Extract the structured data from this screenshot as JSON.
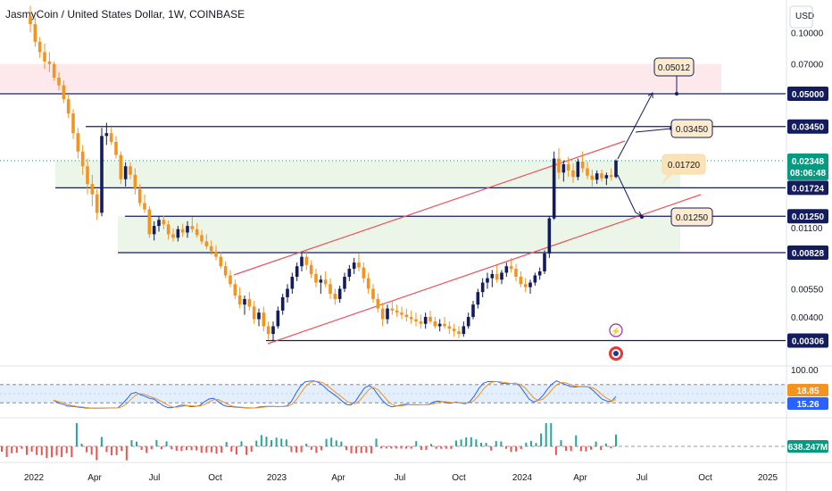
{
  "header": {
    "title": "JasmyCoin / United States Dollar, 1W, COINBASE",
    "currency": "USD"
  },
  "colors": {
    "up": "#131c5c",
    "down": "#f39320",
    "accent_line": "#131c5c",
    "channel": "#f0505a",
    "current_price": "#089981",
    "osc_k": "#2962ff",
    "osc_d": "#f39320"
  },
  "chart_data": {
    "type": "candlestick",
    "price_axis": {
      "scale": "log",
      "ticks": [
        "0.10000",
        "0.07000",
        "0.05000",
        "0.03450",
        "0.02348",
        "0.01724",
        "0.01250",
        "0.01100",
        "0.00828",
        "0.00550",
        "0.00400",
        "0.00306"
      ]
    },
    "x_ticks": [
      "2022",
      "Apr",
      "Jul",
      "Oct",
      "2023",
      "Apr",
      "Jul",
      "Oct",
      "2024",
      "Apr",
      "Jul",
      "Oct",
      "2025"
    ],
    "horizontal_levels": [
      {
        "value": "0.05000"
      },
      {
        "value": "0.03450"
      },
      {
        "value": "0.01724"
      },
      {
        "value": "0.01250"
      },
      {
        "value": "0.00828"
      },
      {
        "value": "0.00306"
      }
    ],
    "current_price": {
      "value": "0.02348",
      "countdown": "08:06:48"
    },
    "target_labels": [
      "0.05012",
      "0.03450",
      "0.01720",
      "0.01250"
    ],
    "oscillator": {
      "axis_label": "100.00",
      "k_value": "18.85",
      "d_value": "15.26",
      "upper_band": 80,
      "lower_band": 20
    },
    "volume": {
      "last_value": "638.247M"
    },
    "candles_sampled_weekly": [
      [
        0.12,
        0.135,
        0.1,
        0.11
      ],
      [
        0.11,
        0.118,
        0.085,
        0.09
      ],
      [
        0.09,
        0.095,
        0.075,
        0.08
      ],
      [
        0.08,
        0.088,
        0.066,
        0.072
      ],
      [
        0.072,
        0.08,
        0.064,
        0.07
      ],
      [
        0.07,
        0.072,
        0.058,
        0.06
      ],
      [
        0.06,
        0.064,
        0.052,
        0.055
      ],
      [
        0.055,
        0.058,
        0.045,
        0.047
      ],
      [
        0.047,
        0.05,
        0.038,
        0.04
      ],
      [
        0.04,
        0.042,
        0.03,
        0.032
      ],
      [
        0.032,
        0.034,
        0.024,
        0.026
      ],
      [
        0.026,
        0.028,
        0.02,
        0.022
      ],
      [
        0.022,
        0.024,
        0.016,
        0.018
      ],
      [
        0.018,
        0.02,
        0.014,
        0.016
      ],
      [
        0.016,
        0.017,
        0.012,
        0.013
      ],
      [
        0.013,
        0.034,
        0.0125,
        0.031
      ],
      [
        0.031,
        0.036,
        0.028,
        0.032
      ],
      [
        0.032,
        0.034,
        0.028,
        0.029
      ],
      [
        0.029,
        0.031,
        0.024,
        0.025
      ],
      [
        0.025,
        0.026,
        0.018,
        0.019
      ],
      [
        0.019,
        0.023,
        0.0175,
        0.022
      ],
      [
        0.022,
        0.023,
        0.019,
        0.02
      ],
      [
        0.02,
        0.0215,
        0.016,
        0.017
      ],
      [
        0.017,
        0.018,
        0.014,
        0.0145
      ],
      [
        0.0145,
        0.016,
        0.013,
        0.0135
      ],
      [
        0.0135,
        0.014,
        0.0098,
        0.0102
      ],
      [
        0.0102,
        0.0118,
        0.0095,
        0.0112
      ],
      [
        0.0112,
        0.0125,
        0.0105,
        0.012
      ],
      [
        0.012,
        0.0126,
        0.0108,
        0.0114
      ],
      [
        0.0114,
        0.0119,
        0.0096,
        0.0102
      ],
      [
        0.0102,
        0.0109,
        0.0094,
        0.0098
      ],
      [
        0.0098,
        0.0112,
        0.0094,
        0.0108
      ],
      [
        0.0108,
        0.0115,
        0.0099,
        0.0104
      ],
      [
        0.0104,
        0.0118,
        0.0098,
        0.0112
      ],
      [
        0.0112,
        0.0124,
        0.0104,
        0.0108
      ],
      [
        0.0108,
        0.0116,
        0.0098,
        0.0101
      ],
      [
        0.0101,
        0.0107,
        0.0091,
        0.0094
      ],
      [
        0.0094,
        0.0102,
        0.0086,
        0.0089
      ],
      [
        0.0089,
        0.0095,
        0.0081,
        0.0084
      ],
      [
        0.0084,
        0.009,
        0.0076,
        0.0079
      ],
      [
        0.0079,
        0.0083,
        0.0069,
        0.0071
      ],
      [
        0.0071,
        0.0075,
        0.0062,
        0.0064
      ],
      [
        0.0064,
        0.0068,
        0.0056,
        0.0058
      ],
      [
        0.0058,
        0.0061,
        0.0049,
        0.0051
      ],
      [
        0.0051,
        0.0056,
        0.0044,
        0.0046
      ],
      [
        0.0046,
        0.0051,
        0.0041,
        0.0049
      ],
      [
        0.0049,
        0.0053,
        0.0043,
        0.0045
      ],
      [
        0.0045,
        0.0048,
        0.0037,
        0.0039
      ],
      [
        0.0039,
        0.0044,
        0.0036,
        0.0042
      ],
      [
        0.0042,
        0.0045,
        0.0034,
        0.0036
      ],
      [
        0.0036,
        0.0038,
        0.0031,
        0.0033
      ],
      [
        0.0033,
        0.0038,
        0.00306,
        0.0036
      ],
      [
        0.0036,
        0.0045,
        0.0035,
        0.0043
      ],
      [
        0.0043,
        0.0052,
        0.0041,
        0.005
      ],
      [
        0.005,
        0.0058,
        0.0047,
        0.0055
      ],
      [
        0.0055,
        0.0066,
        0.0052,
        0.0063
      ],
      [
        0.0063,
        0.0074,
        0.006,
        0.0071
      ],
      [
        0.0071,
        0.0083,
        0.0067,
        0.0079
      ],
      [
        0.0079,
        0.0086,
        0.0068,
        0.0072
      ],
      [
        0.0072,
        0.0076,
        0.0062,
        0.0065
      ],
      [
        0.0065,
        0.0069,
        0.0056,
        0.0059
      ],
      [
        0.0059,
        0.0064,
        0.0052,
        0.0061
      ],
      [
        0.0061,
        0.0067,
        0.0056,
        0.0058
      ],
      [
        0.0058,
        0.0062,
        0.0049,
        0.0052
      ],
      [
        0.0052,
        0.0055,
        0.0046,
        0.0049
      ],
      [
        0.0049,
        0.0057,
        0.0047,
        0.0055
      ],
      [
        0.0055,
        0.0066,
        0.0053,
        0.0063
      ],
      [
        0.0063,
        0.0072,
        0.006,
        0.0069
      ],
      [
        0.0069,
        0.0078,
        0.0065,
        0.0074
      ],
      [
        0.0074,
        0.0082,
        0.0067,
        0.007
      ],
      [
        0.007,
        0.0074,
        0.0059,
        0.0062
      ],
      [
        0.0062,
        0.0066,
        0.0052,
        0.0055
      ],
      [
        0.0055,
        0.0058,
        0.0047,
        0.0049
      ],
      [
        0.0049,
        0.0052,
        0.0042,
        0.0044
      ],
      [
        0.0044,
        0.0047,
        0.0036,
        0.0039
      ],
      [
        0.0039,
        0.0046,
        0.0037,
        0.0044
      ],
      [
        0.0044,
        0.0048,
        0.0041,
        0.0043
      ],
      [
        0.0043,
        0.0046,
        0.004,
        0.0042
      ],
      [
        0.0042,
        0.0045,
        0.0039,
        0.0041
      ],
      [
        0.0041,
        0.0044,
        0.0038,
        0.004
      ],
      [
        0.004,
        0.0043,
        0.0037,
        0.0039
      ],
      [
        0.0039,
        0.0042,
        0.0036,
        0.0038
      ],
      [
        0.0038,
        0.0041,
        0.0035,
        0.0037
      ],
      [
        0.0037,
        0.0042,
        0.0035,
        0.004
      ],
      [
        0.004,
        0.0043,
        0.0037,
        0.0038
      ],
      [
        0.0038,
        0.004,
        0.0035,
        0.0036
      ],
      [
        0.0036,
        0.0039,
        0.0034,
        0.0037
      ],
      [
        0.0037,
        0.004,
        0.0035,
        0.0036
      ],
      [
        0.0036,
        0.0038,
        0.0033,
        0.0035
      ],
      [
        0.0035,
        0.0037,
        0.0032,
        0.0034
      ],
      [
        0.0034,
        0.0036,
        0.00315,
        0.0033
      ],
      [
        0.0033,
        0.0038,
        0.0032,
        0.0036
      ],
      [
        0.0036,
        0.0042,
        0.0035,
        0.004
      ],
      [
        0.004,
        0.0048,
        0.0039,
        0.0046
      ],
      [
        0.0046,
        0.0055,
        0.0044,
        0.0053
      ],
      [
        0.0053,
        0.0062,
        0.005,
        0.0059
      ],
      [
        0.0059,
        0.0066,
        0.0055,
        0.0062
      ],
      [
        0.0062,
        0.0068,
        0.0056,
        0.0065
      ],
      [
        0.0065,
        0.0072,
        0.0059,
        0.0061
      ],
      [
        0.0061,
        0.0068,
        0.0058,
        0.0066
      ],
      [
        0.0066,
        0.0074,
        0.0063,
        0.0071
      ],
      [
        0.0071,
        0.0078,
        0.0066,
        0.0069
      ],
      [
        0.0069,
        0.0073,
        0.006,
        0.0063
      ],
      [
        0.0063,
        0.0067,
        0.0056,
        0.0058
      ],
      [
        0.0058,
        0.0062,
        0.0053,
        0.0056
      ],
      [
        0.0056,
        0.0061,
        0.0052,
        0.0059
      ],
      [
        0.0059,
        0.0066,
        0.0057,
        0.0064
      ],
      [
        0.0064,
        0.007,
        0.0061,
        0.0067
      ],
      [
        0.0067,
        0.0085,
        0.0065,
        0.0082
      ],
      [
        0.0082,
        0.0125,
        0.0078,
        0.0122
      ],
      [
        0.0122,
        0.026,
        0.012,
        0.024
      ],
      [
        0.024,
        0.027,
        0.019,
        0.0205
      ],
      [
        0.0205,
        0.0235,
        0.0185,
        0.0225
      ],
      [
        0.0225,
        0.0245,
        0.0195,
        0.021
      ],
      [
        0.021,
        0.0228,
        0.0182,
        0.0195
      ],
      [
        0.0195,
        0.024,
        0.0188,
        0.0232
      ],
      [
        0.0232,
        0.026,
        0.0205,
        0.0215
      ],
      [
        0.0215,
        0.0232,
        0.019,
        0.0198
      ],
      [
        0.0198,
        0.0212,
        0.0175,
        0.0189
      ],
      [
        0.0189,
        0.021,
        0.018,
        0.0203
      ],
      [
        0.0203,
        0.0212,
        0.0185,
        0.0192
      ],
      [
        0.0192,
        0.0205,
        0.0178,
        0.0199
      ],
      [
        0.0199,
        0.0215,
        0.0187,
        0.0195
      ],
      [
        0.0195,
        0.0238,
        0.0192,
        0.02348
      ]
    ]
  }
}
